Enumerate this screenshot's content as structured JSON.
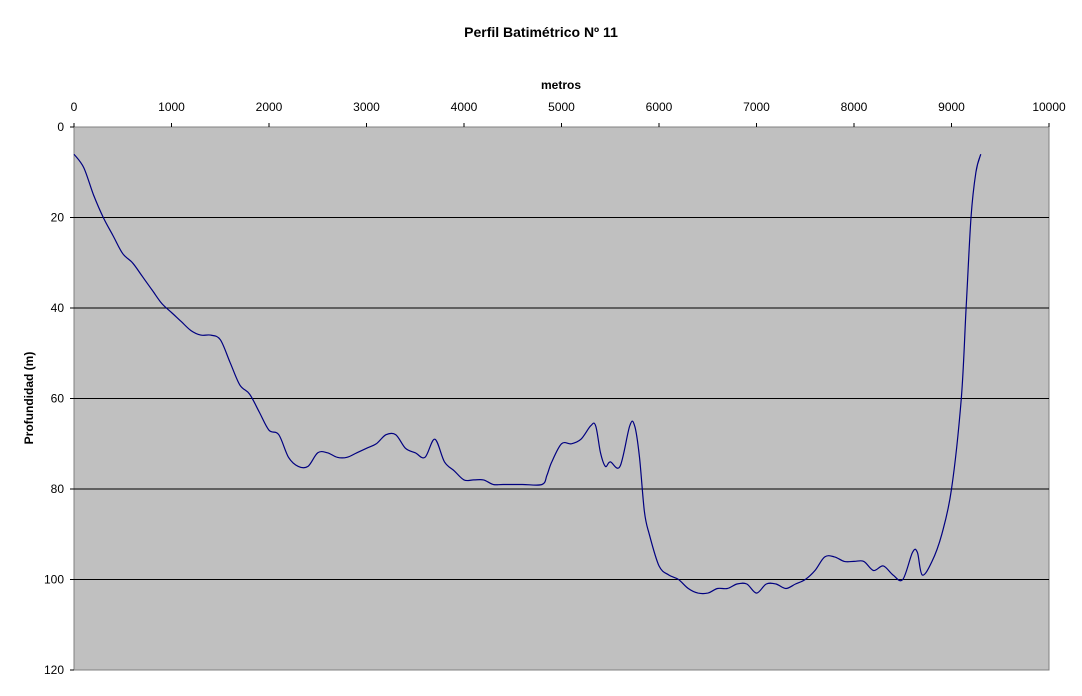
{
  "chart_data": {
    "type": "line",
    "title": "Perfil Batimétrico Nº 11",
    "xlabel": "metros",
    "ylabel": "Profundidad (m)",
    "xlim": [
      0,
      10000
    ],
    "ylim": [
      0,
      120
    ],
    "x_axis_position": "top",
    "y_axis_inverted": true,
    "x_ticks": [
      "0",
      "1000",
      "2000",
      "3000",
      "4000",
      "5000",
      "6000",
      "7000",
      "8000",
      "9000",
      "10000"
    ],
    "y_ticks": [
      "0",
      "20",
      "40",
      "60",
      "80",
      "100",
      "120"
    ],
    "grid": "horizontal",
    "legend": "none",
    "colors": {
      "plot_background": "#c0c0c0",
      "line": "#000080",
      "gridlines": "#000000"
    },
    "series": [
      {
        "x": [
          0,
          100,
          200,
          300,
          400,
          500,
          600,
          700,
          800,
          900,
          1000,
          1100,
          1200,
          1300,
          1400,
          1500,
          1600,
          1700,
          1800,
          1900,
          2000,
          2100,
          2200,
          2300,
          2400,
          2500,
          2600,
          2700,
          2800,
          2900,
          3000,
          3100,
          3200,
          3300,
          3400,
          3500,
          3600,
          3700,
          3800,
          3900,
          4000,
          4100,
          4200,
          4300,
          4400,
          4600,
          4800,
          4850,
          4900,
          5000,
          5100,
          5200,
          5300,
          5350,
          5400,
          5450,
          5500,
          5600,
          5700,
          5750,
          5800,
          5850,
          5900,
          6000,
          6100,
          6200,
          6300,
          6400,
          6500,
          6600,
          6700,
          6800,
          6900,
          7000,
          7100,
          7200,
          7300,
          7400,
          7500,
          7600,
          7700,
          7800,
          7900,
          8000,
          8100,
          8200,
          8300,
          8400,
          8500,
          8600,
          8650,
          8700,
          8800,
          8900,
          9000,
          9100,
          9150,
          9200,
          9250,
          9300
        ],
        "y": [
          6,
          9,
          15,
          20,
          24,
          28,
          30,
          33,
          36,
          39,
          41,
          43,
          45,
          46,
          46,
          47,
          52,
          57,
          59,
          63,
          67,
          68,
          73,
          75,
          75,
          72,
          72,
          73,
          73,
          72,
          71,
          70,
          68,
          68,
          71,
          72,
          73,
          69,
          74,
          76,
          78,
          78,
          78,
          79,
          79,
          79,
          79,
          77,
          74,
          70,
          70,
          69,
          66,
          66,
          72,
          75,
          74,
          75,
          66,
          66,
          73,
          85,
          90,
          97,
          99,
          100,
          102,
          103,
          103,
          102,
          102,
          101,
          101,
          103,
          101,
          101,
          102,
          101,
          100,
          98,
          95,
          95,
          96,
          96,
          96,
          98,
          97,
          99,
          100,
          94,
          94,
          99,
          96,
          90,
          80,
          60,
          40,
          20,
          10,
          6
        ]
      }
    ]
  }
}
